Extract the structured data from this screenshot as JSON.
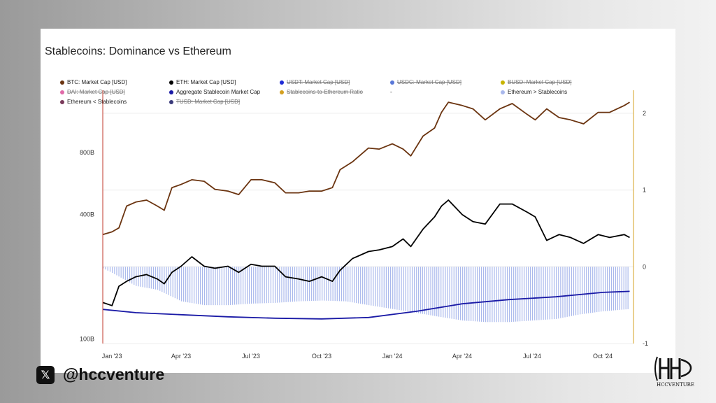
{
  "chart_data": {
    "type": "line",
    "title": "Stablecoins: Dominance vs Ethereum",
    "legend": [
      {
        "label": "BTC: Market Cap [USD]",
        "color": "#6b3410",
        "hidden": false
      },
      {
        "label": "ETH: Market Cap [USD]",
        "color": "#000000",
        "hidden": false
      },
      {
        "label": "USDT: Market Cap [USD]",
        "color": "#1f2bd6",
        "hidden": true
      },
      {
        "label": "USDC: Market Cap [USD]",
        "color": "#5a78d8",
        "hidden": true
      },
      {
        "label": "BUSD: Market Cap [USD]",
        "color": "#c8b400",
        "hidden": true
      },
      {
        "label": "DAI: Market Cap [USD]",
        "color": "#e06aa8",
        "hidden": true
      },
      {
        "label": "Aggregate Stablecoin Market Cap",
        "color": "#1a1aa6",
        "hidden": false
      },
      {
        "label": "Stablecoins-to-Ethereum Ratio",
        "color": "#d4a020",
        "hidden": true
      },
      {
        "label": "-",
        "color": null,
        "hidden": false
      },
      {
        "label": "Ethereum > Stablecoins",
        "color": "#a9b8ec",
        "hidden": false
      },
      {
        "label": "Ethereum < Stablecoins",
        "color": "#7a3a5a",
        "hidden": false
      },
      {
        "label": "TUSD: Market Cap [USD]",
        "color": "#3a3a7a",
        "hidden": true
      }
    ],
    "x_tick_labels": [
      "Jan '23",
      "Apr '23",
      "Jul '23",
      "Oct '23",
      "Jan '24",
      "Apr '24",
      "Jul '24",
      "Oct '24"
    ],
    "y_left_tick_labels": [
      "100B",
      "400B",
      "800B"
    ],
    "y_left_scale": "log",
    "y_right_tick_labels": [
      "-1",
      "0",
      "1",
      "2"
    ],
    "y_right_range": [
      -1,
      2.3
    ],
    "x_range": [
      "2022-12-20",
      "2024-11-10"
    ],
    "series": [
      {
        "name": "BTC: Market Cap [USD]",
        "axis": "left",
        "color": "#6b3410",
        "x": [
          "2022-12-20",
          "2023-01-01",
          "2023-01-10",
          "2023-01-20",
          "2023-02-01",
          "2023-02-15",
          "2023-03-01",
          "2023-03-10",
          "2023-03-20",
          "2023-04-01",
          "2023-04-15",
          "2023-05-01",
          "2023-05-15",
          "2023-06-01",
          "2023-06-15",
          "2023-07-01",
          "2023-07-15",
          "2023-08-01",
          "2023-08-15",
          "2023-09-01",
          "2023-09-15",
          "2023-10-01",
          "2023-10-15",
          "2023-10-25",
          "2023-11-10",
          "2023-12-01",
          "2023-12-15",
          "2024-01-01",
          "2024-01-15",
          "2024-01-25",
          "2024-02-10",
          "2024-02-25",
          "2024-03-05",
          "2024-03-14",
          "2024-04-01",
          "2024-04-15",
          "2024-05-01",
          "2024-05-20",
          "2024-06-05",
          "2024-06-25",
          "2024-07-05",
          "2024-07-20",
          "2024-08-05",
          "2024-08-20",
          "2024-09-06",
          "2024-09-25",
          "2024-10-10",
          "2024-10-29",
          "2024-11-05"
        ],
        "values": [
          320,
          330,
          345,
          440,
          460,
          470,
          440,
          420,
          540,
          560,
          590,
          580,
          530,
          520,
          500,
          590,
          590,
          570,
          510,
          510,
          520,
          520,
          540,
          660,
          720,
          840,
          830,
          880,
          830,
          770,
          960,
          1050,
          1250,
          1400,
          1350,
          1300,
          1150,
          1300,
          1380,
          1220,
          1150,
          1300,
          1180,
          1150,
          1100,
          1250,
          1250,
          1350,
          1400
        ]
      },
      {
        "name": "ETH: Market Cap [USD]",
        "axis": "left",
        "color": "#000000",
        "x": [
          "2022-12-20",
          "2023-01-01",
          "2023-01-10",
          "2023-01-20",
          "2023-02-01",
          "2023-02-15",
          "2023-03-01",
          "2023-03-10",
          "2023-03-20",
          "2023-04-01",
          "2023-04-15",
          "2023-05-01",
          "2023-05-15",
          "2023-06-01",
          "2023-06-15",
          "2023-07-01",
          "2023-07-15",
          "2023-08-01",
          "2023-08-15",
          "2023-09-01",
          "2023-09-15",
          "2023-10-01",
          "2023-10-15",
          "2023-10-25",
          "2023-11-10",
          "2023-12-01",
          "2023-12-15",
          "2024-01-01",
          "2024-01-15",
          "2024-01-25",
          "2024-02-10",
          "2024-02-25",
          "2024-03-05",
          "2024-03-14",
          "2024-04-01",
          "2024-04-15",
          "2024-05-01",
          "2024-05-20",
          "2024-06-05",
          "2024-06-25",
          "2024-07-05",
          "2024-07-20",
          "2024-08-05",
          "2024-08-20",
          "2024-09-06",
          "2024-09-25",
          "2024-10-10",
          "2024-10-29",
          "2024-11-05"
        ],
        "values": [
          150,
          145,
          180,
          190,
          200,
          205,
          195,
          185,
          210,
          225,
          250,
          225,
          220,
          225,
          210,
          230,
          225,
          225,
          200,
          195,
          190,
          200,
          190,
          215,
          245,
          265,
          270,
          280,
          305,
          280,
          340,
          390,
          440,
          470,
          400,
          370,
          360,
          450,
          450,
          410,
          390,
          300,
          320,
          310,
          290,
          320,
          310,
          320,
          310
        ]
      },
      {
        "name": "Aggregate Stablecoin Market Cap",
        "axis": "left",
        "color": "#1a1aa6",
        "x": [
          "2022-12-20",
          "2023-02-01",
          "2023-04-01",
          "2023-06-01",
          "2023-08-01",
          "2023-10-01",
          "2023-12-01",
          "2024-02-01",
          "2024-04-01",
          "2024-06-01",
          "2024-08-01",
          "2024-10-01",
          "2024-11-05"
        ],
        "values": [
          139,
          134,
          131,
          128,
          126,
          125,
          127,
          136,
          148,
          155,
          160,
          168,
          170
        ]
      },
      {
        "name": "Ethereum > Stablecoins",
        "axis": "right",
        "type": "bar",
        "color": "#a9b8ec",
        "x": [
          "2022-12-20",
          "2023-01-01",
          "2023-02-01",
          "2023-03-01",
          "2023-04-01",
          "2023-05-01",
          "2023-06-01",
          "2023-07-01",
          "2023-08-01",
          "2023-09-01",
          "2023-10-01",
          "2023-11-01",
          "2023-12-01",
          "2024-01-01",
          "2024-02-01",
          "2024-03-01",
          "2024-04-01",
          "2024-05-01",
          "2024-06-01",
          "2024-07-01",
          "2024-08-01",
          "2024-09-01",
          "2024-10-01",
          "2024-11-05"
        ],
        "values": [
          -0.02,
          -0.08,
          -0.25,
          -0.3,
          -0.45,
          -0.5,
          -0.5,
          -0.48,
          -0.47,
          -0.45,
          -0.44,
          -0.45,
          -0.5,
          -0.55,
          -0.6,
          -0.65,
          -0.7,
          -0.72,
          -0.72,
          -0.7,
          -0.68,
          -0.62,
          -0.58,
          -0.55
        ]
      }
    ],
    "grid": true
  },
  "brand": {
    "x_icon": "x-logo-icon",
    "x_glyph": "𝕏",
    "handle": "@hccventure",
    "corner_logo_text": "HCCVENTURE"
  }
}
